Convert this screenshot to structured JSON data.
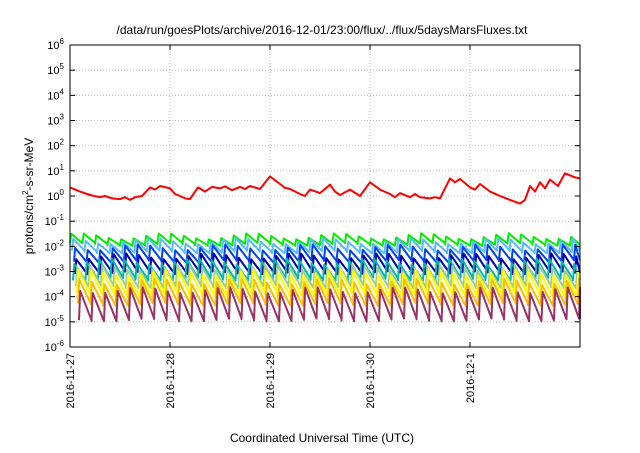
{
  "chart_data": {
    "type": "line",
    "title": "/data/run/goesPlots/archive/2016-12-01/23:00/flux/../flux/5daysMarsFluxes.txt",
    "xlabel": "Coordinated Universal Time (UTC)",
    "ylabel": {
      "base": "protons/cm",
      "exp": "2",
      "rest": "-s-sr-MeV"
    },
    "ylim_log10": [
      -6,
      6
    ],
    "yticks": [
      {
        "base": "10",
        "exp": "6"
      },
      {
        "base": "10",
        "exp": "5"
      },
      {
        "base": "10",
        "exp": "4"
      },
      {
        "base": "10",
        "exp": "3"
      },
      {
        "base": "10",
        "exp": "2"
      },
      {
        "base": "10",
        "exp": "1"
      },
      {
        "base": "10",
        "exp": "0"
      },
      {
        "base": "10",
        "exp": "-1"
      },
      {
        "base": "10",
        "exp": "-2"
      },
      {
        "base": "10",
        "exp": "-3"
      },
      {
        "base": "10",
        "exp": "-4"
      },
      {
        "base": "10",
        "exp": "-5"
      },
      {
        "base": "10",
        "exp": "-6"
      }
    ],
    "xlim_days": [
      0,
      5.1
    ],
    "xticks": [
      "2016-11-27",
      "2016-11-28",
      "2016-11-29",
      "2016-11-30",
      "2016-12-1"
    ],
    "grid": true,
    "series": [
      {
        "color": "#ff0000",
        "x": [
          0.0,
          0.1,
          0.2,
          0.3,
          0.35,
          0.42,
          0.5,
          0.55,
          0.6,
          0.65,
          0.72,
          0.8,
          0.85,
          0.9,
          1.0,
          1.05,
          1.1,
          1.15,
          1.2,
          1.28,
          1.35,
          1.42,
          1.5,
          1.55,
          1.62,
          1.7,
          1.75,
          1.8,
          1.9,
          2.0,
          2.1,
          2.15,
          2.2,
          2.3,
          2.35,
          2.4,
          2.5,
          2.6,
          2.65,
          2.7,
          2.8,
          2.9,
          3.0,
          3.1,
          3.2,
          3.25,
          3.3,
          3.4,
          3.45,
          3.5,
          3.6,
          3.65,
          3.7,
          3.8,
          3.85,
          3.9,
          4.0,
          4.05,
          4.1,
          4.2,
          4.3,
          4.4,
          4.5,
          4.55,
          4.6,
          4.65,
          4.7,
          4.75,
          4.8,
          4.88,
          4.95,
          5.05,
          5.1
        ],
        "y": [
          2.2,
          1.5,
          1.1,
          0.9,
          1.0,
          0.8,
          0.75,
          0.9,
          0.7,
          0.9,
          1.0,
          2.2,
          1.8,
          2.5,
          2.0,
          1.2,
          1.0,
          0.8,
          0.75,
          2.2,
          1.5,
          2.3,
          2.0,
          2.4,
          1.7,
          2.3,
          1.9,
          2.5,
          1.9,
          6.0,
          3.0,
          2.1,
          1.9,
          1.2,
          1.0,
          1.8,
          1.3,
          2.8,
          1.5,
          1.1,
          1.8,
          1.0,
          3.5,
          1.8,
          1.2,
          0.9,
          1.3,
          0.9,
          1.2,
          0.9,
          0.8,
          0.9,
          0.8,
          5.0,
          3.5,
          4.8,
          2.2,
          1.8,
          3.0,
          1.5,
          1.0,
          0.7,
          0.5,
          0.7,
          2.5,
          1.5,
          3.5,
          2.0,
          4.5,
          2.5,
          8.0,
          5.5,
          5.0
        ]
      },
      {
        "color": "#00ee00",
        "base": 0.025,
        "low": 0.012,
        "offset": 0.0,
        "period": 0.125
      },
      {
        "color": "#55bbff",
        "base": 0.016,
        "low": 0.006,
        "offset": 0.02,
        "period": 0.125
      },
      {
        "color": "#0044ee",
        "base": 0.009,
        "low": 0.0025,
        "offset": 0.04,
        "period": 0.125
      },
      {
        "color": "#0000aa",
        "base": 0.004,
        "low": 0.0009,
        "offset": 0.05,
        "period": 0.125
      },
      {
        "color": "#00bbaa",
        "base": 0.0025,
        "low": 0.0005,
        "offset": 0.03,
        "period": 0.125
      },
      {
        "color": "#99cc99",
        "base": 0.0014,
        "low": 0.00025,
        "offset": 0.06,
        "period": 0.125
      },
      {
        "color": "#ffff00",
        "base": 0.0009,
        "low": 0.00012,
        "offset": 0.07,
        "period": 0.125
      },
      {
        "color": "#ffbb00",
        "base": 0.0004,
        "low": 5e-05,
        "offset": 0.08,
        "period": 0.125
      },
      {
        "color": "#993366",
        "base": 0.00018,
        "low": 1.2e-05,
        "offset": 0.09,
        "period": 0.125
      }
    ]
  }
}
